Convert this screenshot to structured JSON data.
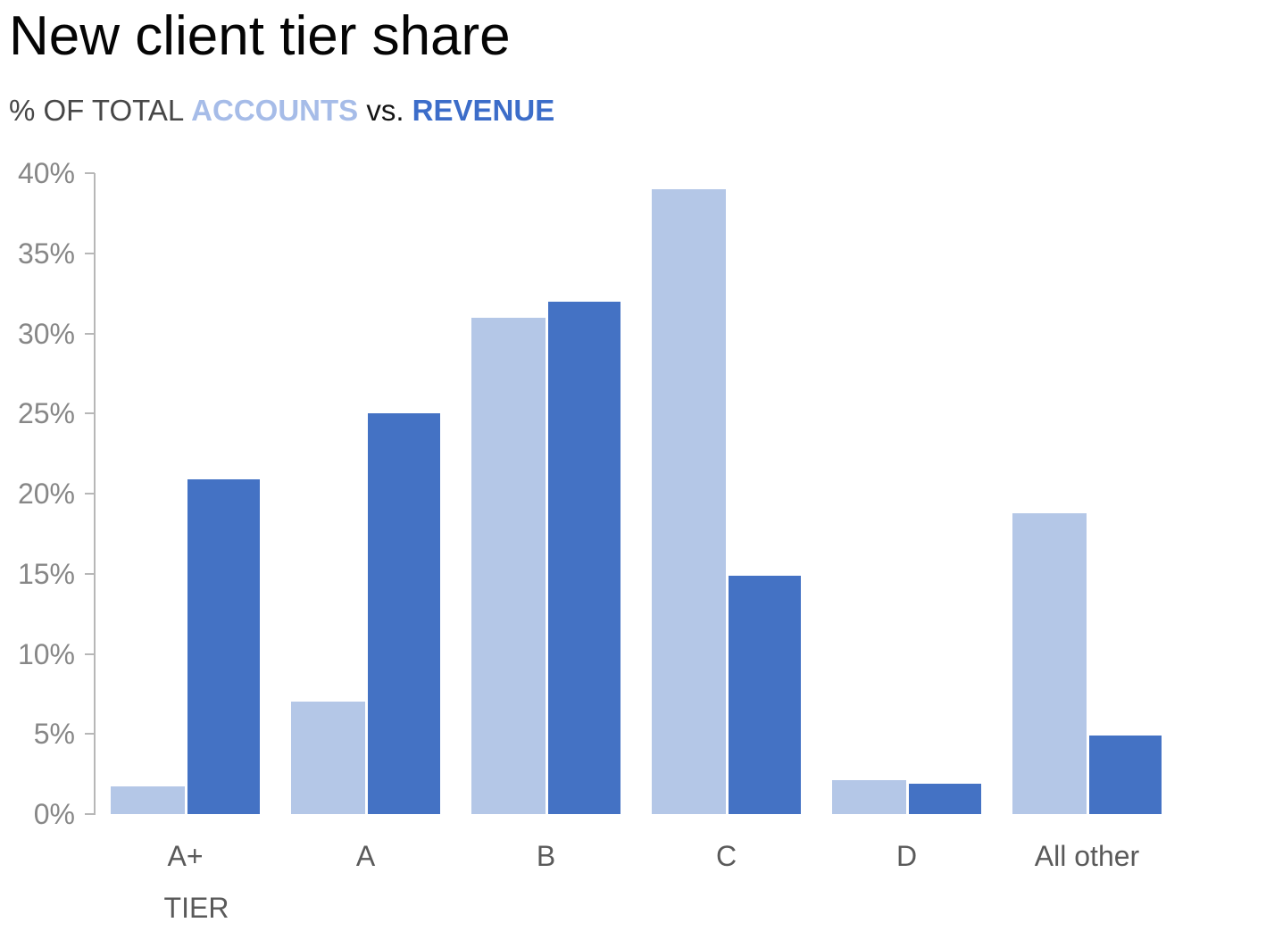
{
  "title": "New client tier share",
  "subtitle": {
    "prefix": "% OF TOTAL ",
    "accounts": "ACCOUNTS",
    "vs": " vs. ",
    "revenue": "REVENUE"
  },
  "colors": {
    "accounts_bar": "#b4c7e7",
    "revenue_bar": "#4472c4",
    "accounts_label": "#a6bce8",
    "revenue_label": "#3c6dc9",
    "axis_line": "#b7b7b7",
    "y_tick_text": "#878787",
    "x_category_text": "#5a5a5a"
  },
  "chart_data": {
    "type": "bar",
    "title": "New client tier share",
    "subtitle": "% OF TOTAL ACCOUNTS vs. REVENUE",
    "categories": [
      "A+",
      "A",
      "B",
      "C",
      "D",
      "All other"
    ],
    "series": [
      {
        "name": "ACCOUNTS",
        "color": "#b4c7e7",
        "values": [
          1.7,
          7,
          31,
          39,
          2.1,
          18.8
        ]
      },
      {
        "name": "REVENUE",
        "color": "#4472c4",
        "values": [
          20.9,
          25,
          32,
          14.9,
          1.9,
          4.9
        ]
      }
    ],
    "xlabel": "TIER",
    "ylabel": "",
    "ylim": [
      0,
      40
    ],
    "ytick_values": [
      0,
      5,
      10,
      15,
      20,
      25,
      30,
      35,
      40
    ],
    "ytick_labels": [
      "0%",
      "5%",
      "10%",
      "15%",
      "20%",
      "25%",
      "30%",
      "35%",
      "40%"
    ],
    "grid": false,
    "legend_position": "inline-in-subtitle",
    "bar_gap_in_group": true
  }
}
